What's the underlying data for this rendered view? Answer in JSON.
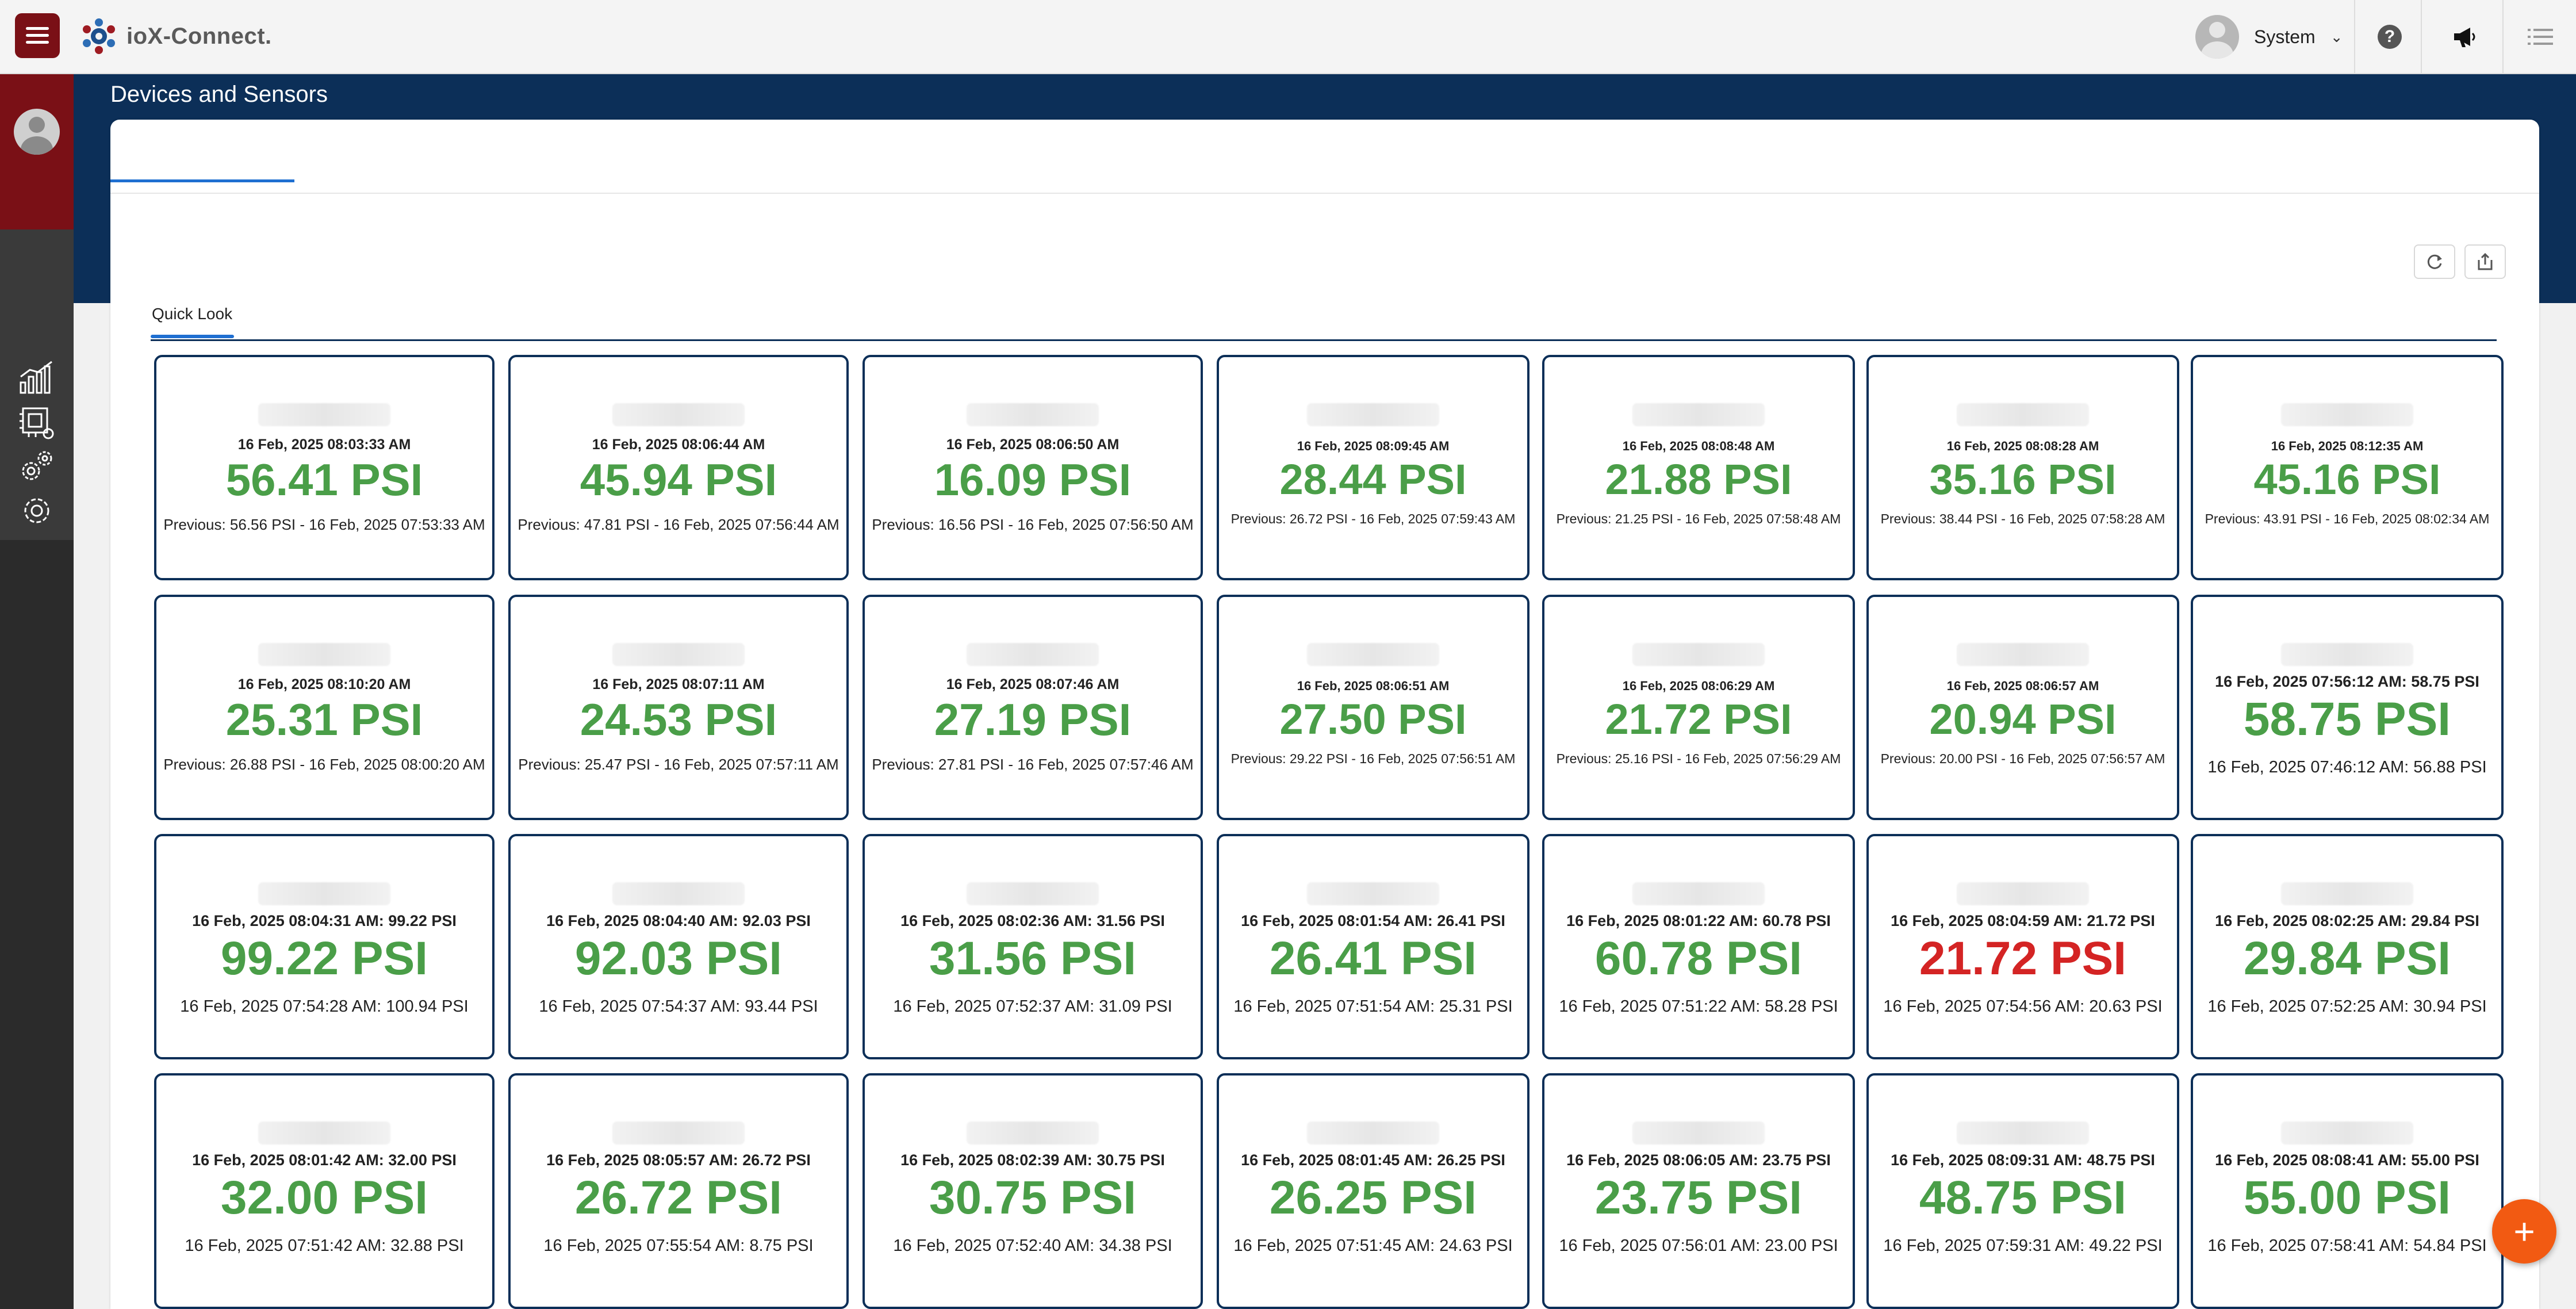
{
  "header": {
    "app_name": "ioX-Connect.",
    "user": "System"
  },
  "page": {
    "title": "Devices and Sensors",
    "inner_tab": "Quick Look"
  },
  "colors": {
    "brand": "#7a1016",
    "band": "#0c2f58",
    "accent": "#1f6fd1",
    "value_ok": "#4a9e48",
    "value_alert": "#d42424",
    "fab": "#f25a12"
  },
  "icons": {
    "top": [
      "menu-icon",
      "logo-icon",
      "avatar-icon",
      "chevron-down-icon",
      "help-icon",
      "megaphone-icon",
      "list-icon"
    ],
    "sidebar": [
      "chart-icon",
      "device-chip-icon",
      "gears-icon",
      "settings-icon"
    ],
    "toolbar": [
      "refresh-icon",
      "export-icon"
    ],
    "fab": "plus-icon"
  },
  "cards": [
    {
      "ts": "16 Feb, 2025 08:03:33 AM",
      "value": "56.41 PSI",
      "prev": "Previous: 56.56 PSI - 16 Feb, 2025 07:53:33 AM",
      "status": "ok"
    },
    {
      "ts": "16 Feb, 2025 08:06:44 AM",
      "value": "45.94 PSI",
      "prev": "Previous: 47.81 PSI - 16 Feb, 2025 07:56:44 AM",
      "status": "ok"
    },
    {
      "ts": "16 Feb, 2025 08:06:50 AM",
      "value": "16.09 PSI",
      "prev": "Previous: 16.56 PSI - 16 Feb, 2025 07:56:50 AM",
      "status": "ok"
    },
    {
      "ts": "16 Feb, 2025 08:09:45 AM",
      "value": "28.44 PSI",
      "prev": "Previous: 26.72 PSI - 16 Feb, 2025 07:59:43 AM",
      "status": "ok"
    },
    {
      "ts": "16 Feb, 2025 08:08:48 AM",
      "value": "21.88 PSI",
      "prev": "Previous: 21.25 PSI - 16 Feb, 2025 07:58:48 AM",
      "status": "ok"
    },
    {
      "ts": "16 Feb, 2025 08:08:28 AM",
      "value": "35.16 PSI",
      "prev": "Previous: 38.44 PSI - 16 Feb, 2025 07:58:28 AM",
      "status": "ok"
    },
    {
      "ts": "16 Feb, 2025 08:12:35 AM",
      "value": "45.16 PSI",
      "prev": "Previous: 43.91 PSI - 16 Feb, 2025 08:02:34 AM",
      "status": "ok"
    },
    {
      "ts": "16 Feb, 2025 08:10:20 AM",
      "value": "25.31 PSI",
      "prev": "Previous: 26.88 PSI - 16 Feb, 2025 08:00:20 AM",
      "status": "ok"
    },
    {
      "ts": "16 Feb, 2025 08:07:11 AM",
      "value": "24.53 PSI",
      "prev": "Previous: 25.47 PSI - 16 Feb, 2025 07:57:11 AM",
      "status": "ok"
    },
    {
      "ts": "16 Feb, 2025 08:07:46 AM",
      "value": "27.19 PSI",
      "prev": "Previous: 27.81 PSI - 16 Feb, 2025 07:57:46 AM",
      "status": "ok"
    },
    {
      "ts": "16 Feb, 2025 08:06:51 AM",
      "value": "27.50 PSI",
      "prev": "Previous: 29.22 PSI - 16 Feb, 2025 07:56:51 AM",
      "status": "ok"
    },
    {
      "ts": "16 Feb, 2025 08:06:29 AM",
      "value": "21.72 PSI",
      "prev": "Previous: 25.16 PSI - 16 Feb, 2025 07:56:29 AM",
      "status": "ok"
    },
    {
      "ts": "16 Feb, 2025 08:06:57 AM",
      "value": "20.94 PSI",
      "prev": "Previous: 20.00 PSI - 16 Feb, 2025 07:56:57 AM",
      "status": "ok"
    },
    {
      "ts": "16 Feb, 2025 07:56:12 AM: 58.75 PSI",
      "value": "58.75 PSI",
      "prev": "16 Feb, 2025 07:46:12 AM: 56.88 PSI",
      "status": "ok"
    },
    {
      "ts": "16 Feb, 2025 08:04:31 AM: 99.22 PSI",
      "value": "99.22 PSI",
      "prev": "16 Feb, 2025 07:54:28 AM: 100.94 PSI",
      "status": "ok"
    },
    {
      "ts": "16 Feb, 2025 08:04:40 AM: 92.03 PSI",
      "value": "92.03 PSI",
      "prev": "16 Feb, 2025 07:54:37 AM: 93.44 PSI",
      "status": "ok"
    },
    {
      "ts": "16 Feb, 2025 08:02:36 AM: 31.56 PSI",
      "value": "31.56 PSI",
      "prev": "16 Feb, 2025 07:52:37 AM: 31.09 PSI",
      "status": "ok"
    },
    {
      "ts": "16 Feb, 2025 08:01:54 AM: 26.41 PSI",
      "value": "26.41 PSI",
      "prev": "16 Feb, 2025 07:51:54 AM: 25.31 PSI",
      "status": "ok"
    },
    {
      "ts": "16 Feb, 2025 08:01:22 AM: 60.78 PSI",
      "value": "60.78 PSI",
      "prev": "16 Feb, 2025 07:51:22 AM: 58.28 PSI",
      "status": "ok"
    },
    {
      "ts": "16 Feb, 2025 08:04:59 AM: 21.72 PSI",
      "value": "21.72 PSI",
      "prev": "16 Feb, 2025 07:54:56 AM: 20.63 PSI",
      "status": "alert"
    },
    {
      "ts": "16 Feb, 2025 08:02:25 AM: 29.84 PSI",
      "value": "29.84 PSI",
      "prev": "16 Feb, 2025 07:52:25 AM: 30.94 PSI",
      "status": "ok"
    },
    {
      "ts": "16 Feb, 2025 08:01:42 AM: 32.00 PSI",
      "value": "32.00 PSI",
      "prev": "16 Feb, 2025 07:51:42 AM: 32.88 PSI",
      "status": "ok"
    },
    {
      "ts": "16 Feb, 2025 08:05:57 AM: 26.72 PSI",
      "value": "26.72 PSI",
      "prev": "16 Feb, 2025 07:55:54 AM: 8.75 PSI",
      "status": "ok"
    },
    {
      "ts": "16 Feb, 2025 08:02:39 AM: 30.75 PSI",
      "value": "30.75 PSI",
      "prev": "16 Feb, 2025 07:52:40 AM: 34.38 PSI",
      "status": "ok"
    },
    {
      "ts": "16 Feb, 2025 08:01:45 AM: 26.25 PSI",
      "value": "26.25 PSI",
      "prev": "16 Feb, 2025 07:51:45 AM: 24.63 PSI",
      "status": "ok"
    },
    {
      "ts": "16 Feb, 2025 08:06:05 AM: 23.75 PSI",
      "value": "23.75 PSI",
      "prev": "16 Feb, 2025 07:56:01 AM: 23.00 PSI",
      "status": "ok"
    },
    {
      "ts": "16 Feb, 2025 08:09:31 AM: 48.75 PSI",
      "value": "48.75 PSI",
      "prev": "16 Feb, 2025 07:59:31 AM: 49.22 PSI",
      "status": "ok"
    },
    {
      "ts": "16 Feb, 2025 08:08:41 AM: 55.00 PSI",
      "value": "55.00 PSI",
      "prev": "16 Feb, 2025 07:58:41 AM: 54.84 PSI",
      "status": "ok"
    }
  ]
}
